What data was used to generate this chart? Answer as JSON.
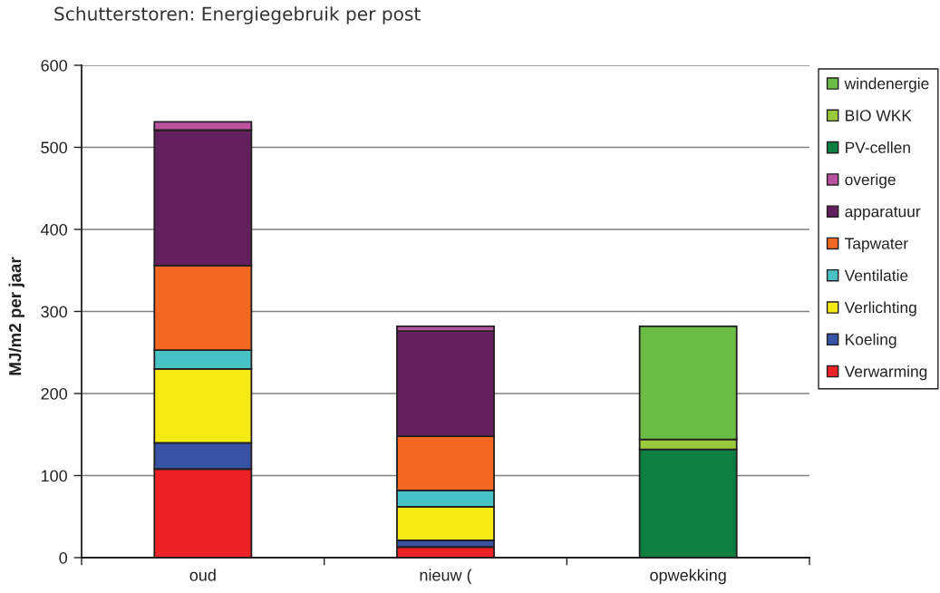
{
  "chart_data": {
    "type": "bar",
    "title": "Schutterstoren: Energiegebruik per post",
    "ylabel": "MJ/m2 per jaar",
    "categories": [
      "oud",
      "nieuw (",
      "opwekking"
    ],
    "stacked": true,
    "series": [
      {
        "name": "Verwarming",
        "color": "#ec2227",
        "values": [
          108,
          13,
          null
        ]
      },
      {
        "name": "Koeling",
        "color": "#3953a4",
        "values": [
          32,
          8,
          null
        ]
      },
      {
        "name": "Verlichting",
        "color": "#f5ea14",
        "values": [
          90,
          41,
          null
        ]
      },
      {
        "name": "Ventilatie",
        "color": "#48c2c5",
        "values": [
          23,
          20,
          null
        ]
      },
      {
        "name": "Tapwater",
        "color": "#f26722",
        "values": [
          103,
          66,
          null
        ]
      },
      {
        "name": "apparatuur",
        "color": "#62205f",
        "values": [
          165,
          128,
          null
        ]
      },
      {
        "name": "overige",
        "color": "#b9529f",
        "values": [
          10,
          6,
          null
        ]
      },
      {
        "name": "PV-cellen",
        "color": "#0b8040",
        "values": [
          null,
          null,
          132
        ]
      },
      {
        "name": "BIO WKK",
        "color": "#9bc93c",
        "values": [
          null,
          null,
          12
        ]
      },
      {
        "name": "windenergie",
        "color": "#6bbd45",
        "values": [
          null,
          null,
          138
        ]
      }
    ],
    "ylim": [
      0,
      600
    ],
    "yticks": [
      0,
      100,
      200,
      300,
      400,
      500,
      600
    ],
    "grid": "y",
    "legend": "right"
  }
}
